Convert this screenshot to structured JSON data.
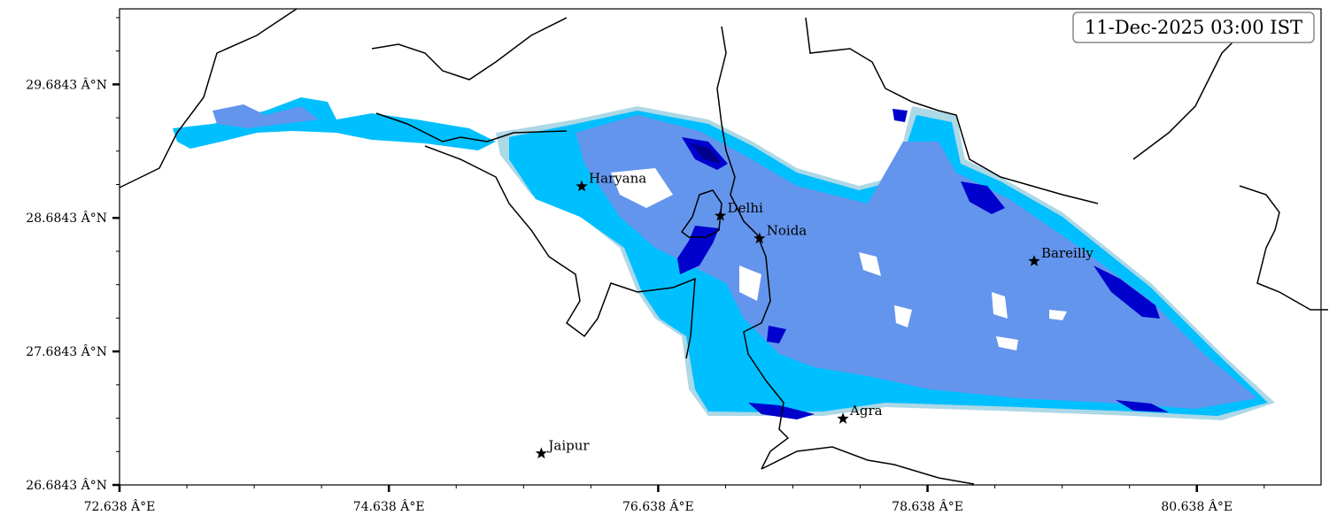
{
  "timestamp": "11-Dec-2025 03:00 IST",
  "axes": {
    "x_ticks": [
      {
        "value": 72.638,
        "label": "72.638 Â°E"
      },
      {
        "value": 74.638,
        "label": "74.638 Â°E"
      },
      {
        "value": 76.638,
        "label": "76.638 Â°E"
      },
      {
        "value": 78.638,
        "label": "78.638 Â°E"
      },
      {
        "value": 80.638,
        "label": "80.638 Â°E"
      }
    ],
    "y_ticks": [
      {
        "value": 26.6843,
        "label": "26.6843 Â°N"
      },
      {
        "value": 27.6843,
        "label": "27.6843 Â°N"
      },
      {
        "value": 28.6843,
        "label": "28.6843 Â°N"
      },
      {
        "value": 29.6843,
        "label": "29.6843 Â°N"
      }
    ],
    "lon_range": [
      72.638,
      81.56
    ],
    "lat_range": [
      26.6843,
      30.25
    ]
  },
  "cities": [
    {
      "name": "Haryana",
      "lon": 76.07,
      "lat": 28.92
    },
    {
      "name": "Delhi",
      "lon": 77.1,
      "lat": 28.7
    },
    {
      "name": "Noida",
      "lon": 77.39,
      "lat": 28.53
    },
    {
      "name": "Bareilly",
      "lon": 79.43,
      "lat": 28.36
    },
    {
      "name": "Agra",
      "lon": 78.01,
      "lat": 27.18
    },
    {
      "name": "Jaipur",
      "lon": 75.77,
      "lat": 26.92
    }
  ],
  "colors": {
    "level1": "#add8e6",
    "level2": "#00bfff",
    "level3": "#6495ed",
    "level4": "#4169e1",
    "level5": "#0000cd",
    "level6": "#00008b",
    "boundary": "#000000"
  }
}
